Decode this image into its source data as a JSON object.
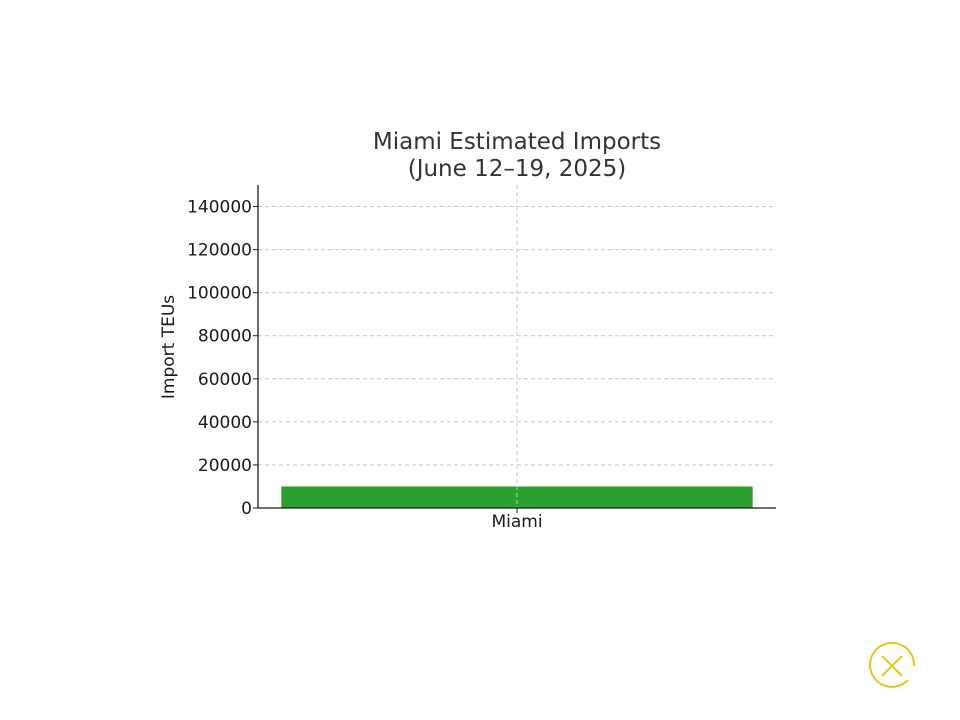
{
  "chart_data": {
    "type": "bar",
    "title": [
      "Miami Estimated Imports",
      "(June 12–19, 2025)"
    ],
    "categories": [
      "Miami"
    ],
    "values": [
      10000
    ],
    "xlabel": "",
    "ylabel": "Import TEUs",
    "ylim": [
      0,
      150000
    ],
    "yticks": [
      0,
      20000,
      40000,
      60000,
      80000,
      100000,
      120000,
      140000
    ],
    "grid": true,
    "legend": "none",
    "colors": {
      "bar": "#2ca02c",
      "grid": "#c8c8c8",
      "axis": "#1a1a1a"
    }
  },
  "controls": {
    "close_icon": "close-icon",
    "close_color": "#e6c619"
  }
}
